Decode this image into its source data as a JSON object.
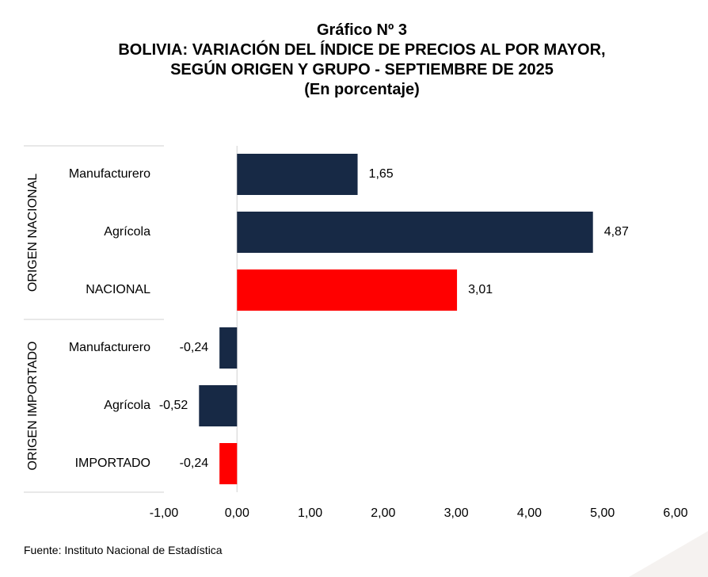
{
  "title": {
    "line1": "Gráfico Nº 3",
    "line2": "BOLIVIA: VARIACIÓN DEL ÍNDICE DE PRECIOS AL POR MAYOR,",
    "line3": "SEGÚN ORIGEN Y GRUPO - SEPTIEMBRE DE 2025",
    "line4": "(En porcentaje)"
  },
  "source": "Fuente: Instituto Nacional de Estadística",
  "colors": {
    "dark_bar": "#172945",
    "red_bar": "#ff0000",
    "axis": "#d9d9d9"
  },
  "chart_data": {
    "type": "bar",
    "orientation": "horizontal",
    "groups": [
      {
        "label": "ORIGEN NACIONAL",
        "categories": [
          "Manufacturero",
          "Agrícola",
          "NACIONAL"
        ]
      },
      {
        "label": "ORIGEN IMPORTADO",
        "categories": [
          "Manufacturero",
          "Agrícola",
          "IMPORTADO"
        ]
      }
    ],
    "categories": [
      "Manufacturero",
      "Agrícola",
      "NACIONAL",
      "Manufacturero",
      "Agrícola",
      "IMPORTADO"
    ],
    "values": [
      1.65,
      4.87,
      3.01,
      -0.24,
      -0.52,
      -0.24
    ],
    "value_labels": [
      "1,65",
      "4,87",
      "3,01",
      "-0,24",
      "-0,52",
      "-0,24"
    ],
    "highlight": [
      false,
      false,
      true,
      false,
      false,
      true
    ],
    "xlim": [
      -1,
      6
    ],
    "xticks": [
      -1,
      0,
      1,
      2,
      3,
      4,
      5,
      6
    ],
    "xtick_labels": [
      "-1,00",
      "0,00",
      "1,00",
      "2,00",
      "3,00",
      "4,00",
      "5,00",
      "6,00"
    ],
    "title": "BOLIVIA: VARIACIÓN DEL ÍNDICE DE PRECIOS AL POR MAYOR, SEGÚN ORIGEN Y GRUPO - SEPTIEMBRE DE 2025",
    "xlabel": "",
    "ylabel": ""
  }
}
